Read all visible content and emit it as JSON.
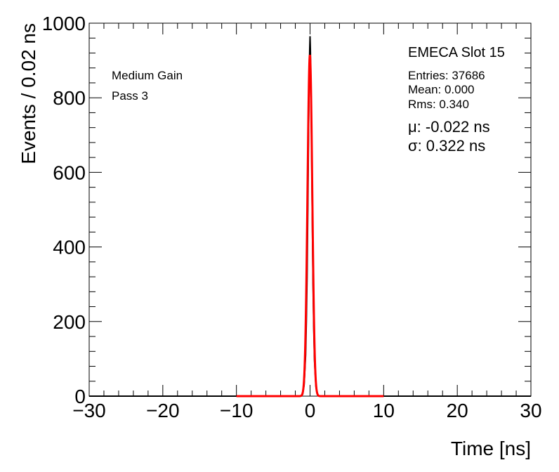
{
  "chart_data": {
    "type": "line",
    "title": "",
    "xlabel": "Time [ns]",
    "ylabel": "Events / 0.02 ns",
    "xlim": [
      -30,
      30
    ],
    "ylim": [
      0,
      1000
    ],
    "x_ticks": [
      -30,
      -20,
      -10,
      0,
      10,
      20,
      30
    ],
    "x_tick_labels": [
      "−30",
      "−20",
      "−10",
      "0",
      "10",
      "20",
      "30"
    ],
    "y_ticks": [
      0,
      200,
      400,
      600,
      800,
      1000
    ],
    "y_tick_labels": [
      "0",
      "200",
      "400",
      "600",
      "800",
      "1000"
    ],
    "grid": false,
    "series": [
      {
        "kind": "histogram",
        "color": "#000000",
        "x": [
          -1.2,
          -1.0,
          -0.8,
          -0.6,
          -0.5,
          -0.4,
          -0.3,
          -0.2,
          -0.1,
          -0.05,
          0.0,
          0.05,
          0.1,
          0.2,
          0.3,
          0.4,
          0.5,
          0.6,
          0.8,
          1.0,
          1.2
        ],
        "values": [
          0,
          5,
          30,
          110,
          200,
          320,
          500,
          700,
          870,
          930,
          965,
          930,
          860,
          680,
          480,
          300,
          180,
          95,
          25,
          5,
          0
        ]
      },
      {
        "kind": "gaussian-fit",
        "color": "#ff0000",
        "mean": -0.022,
        "sigma": 0.322,
        "peak": 915,
        "range": [
          -10,
          10
        ]
      }
    ],
    "annotations": {
      "left": [
        "Medium Gain",
        "Pass 3"
      ],
      "title_right": "EMECA Slot 15",
      "stats": [
        "Entries: 37686",
        "Mean: 0.000",
        "Rms: 0.340"
      ],
      "fit": [
        "μ: -0.022 ns",
        "σ: 0.322 ns"
      ]
    }
  }
}
